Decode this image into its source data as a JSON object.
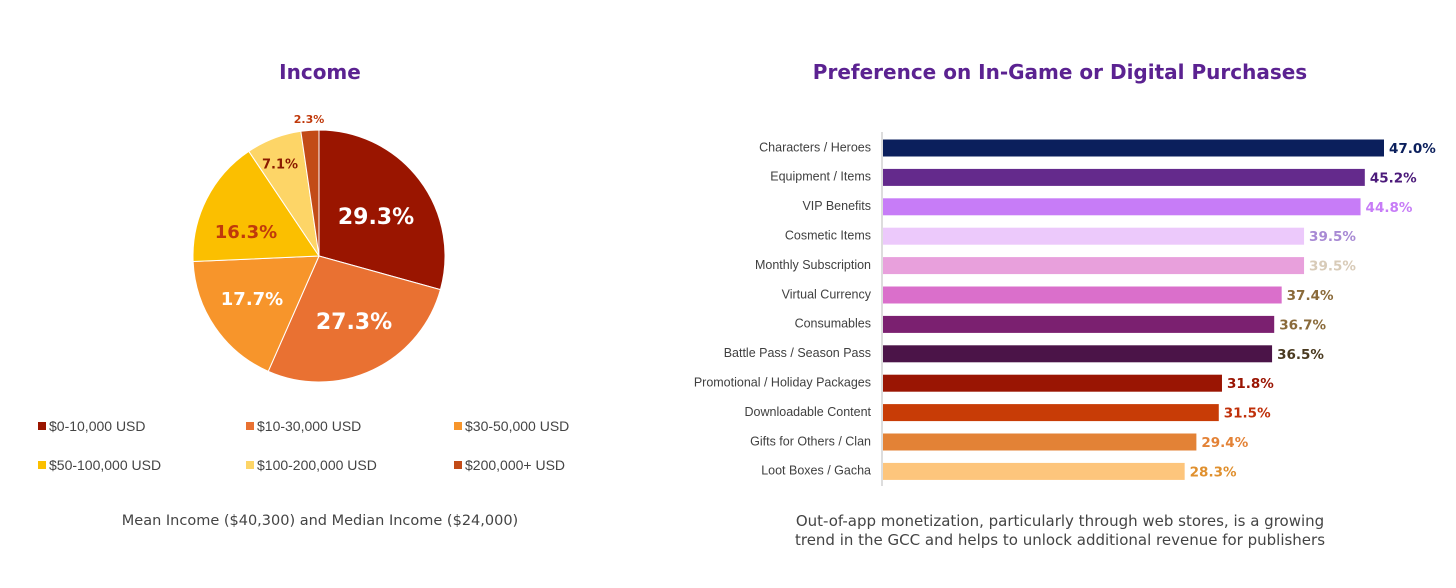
{
  "chart_data": [
    {
      "type": "pie",
      "title": "Income",
      "categories": [
        "$0-10,000 USD",
        "$10-30,000 USD",
        "$30-50,000 USD",
        "$50-100,000 USD",
        "$100-200,000 USD",
        "$200,000+ USD"
      ],
      "values": [
        29.3,
        27.3,
        17.7,
        16.3,
        7.1,
        2.3
      ],
      "data_labels": [
        "29.3%",
        "27.3%",
        "17.7%",
        "16.3%",
        "7.1%",
        "2.3%"
      ],
      "colors": [
        "#9a1500",
        "#e97132",
        "#f7952b",
        "#fbbf00",
        "#fdd567",
        "#c24b17"
      ],
      "label_colors": [
        "#ffffff",
        "#ffffff",
        "#ffffff",
        "#c0390b",
        "#8a1a00",
        "#c0390b"
      ],
      "legend_placement": "bottom",
      "note": "Mean Income ($40,300) and Median Income ($24,000)"
    },
    {
      "type": "bar",
      "orientation": "horizontal",
      "title": "Preference on In-Game or Digital Purchases",
      "categories": [
        "Characters / Heroes",
        "Equipment / Items",
        "VIP Benefits",
        "Cosmetic Items",
        "Monthly Subscription",
        "Virtual Currency",
        "Consumables",
        "Battle Pass / Season Pass",
        "Promotional / Holiday Packages",
        "Downloadable Content",
        "Gifts for Others / Clan",
        "Loot Boxes / Gacha"
      ],
      "values": [
        47.0,
        45.2,
        44.8,
        39.5,
        39.5,
        37.4,
        36.7,
        36.5,
        31.8,
        31.5,
        29.4,
        28.3
      ],
      "data_labels": [
        "47.0%",
        "45.2%",
        "44.8%",
        "39.5%",
        "39.5%",
        "37.4%",
        "36.7%",
        "36.5%",
        "31.8%",
        "31.5%",
        "29.4%",
        "28.3%"
      ],
      "colors": [
        "#0b1f5c",
        "#642a8c",
        "#c77cf7",
        "#ecc9fb",
        "#e8a0dc",
        "#da6fcb",
        "#7b2070",
        "#4b1448",
        "#9a1503",
        "#c83c06",
        "#e38236",
        "#fdc57c"
      ],
      "label_colors": [
        "#0b1f5c",
        "#4b1a7a",
        "#c77cf7",
        "#a88ad4",
        "#d8cbb8",
        "#8a6a3a",
        "#8a6a3a",
        "#4a3a20",
        "#9a1503",
        "#c0300a",
        "#e38236",
        "#e0902e"
      ],
      "xlim": [
        0,
        47
      ],
      "grid": false,
      "note": "Out-of-app monetization, particularly through web stores, is a growing trend in the GCC and helps to unlock additional revenue for publishers"
    }
  ]
}
